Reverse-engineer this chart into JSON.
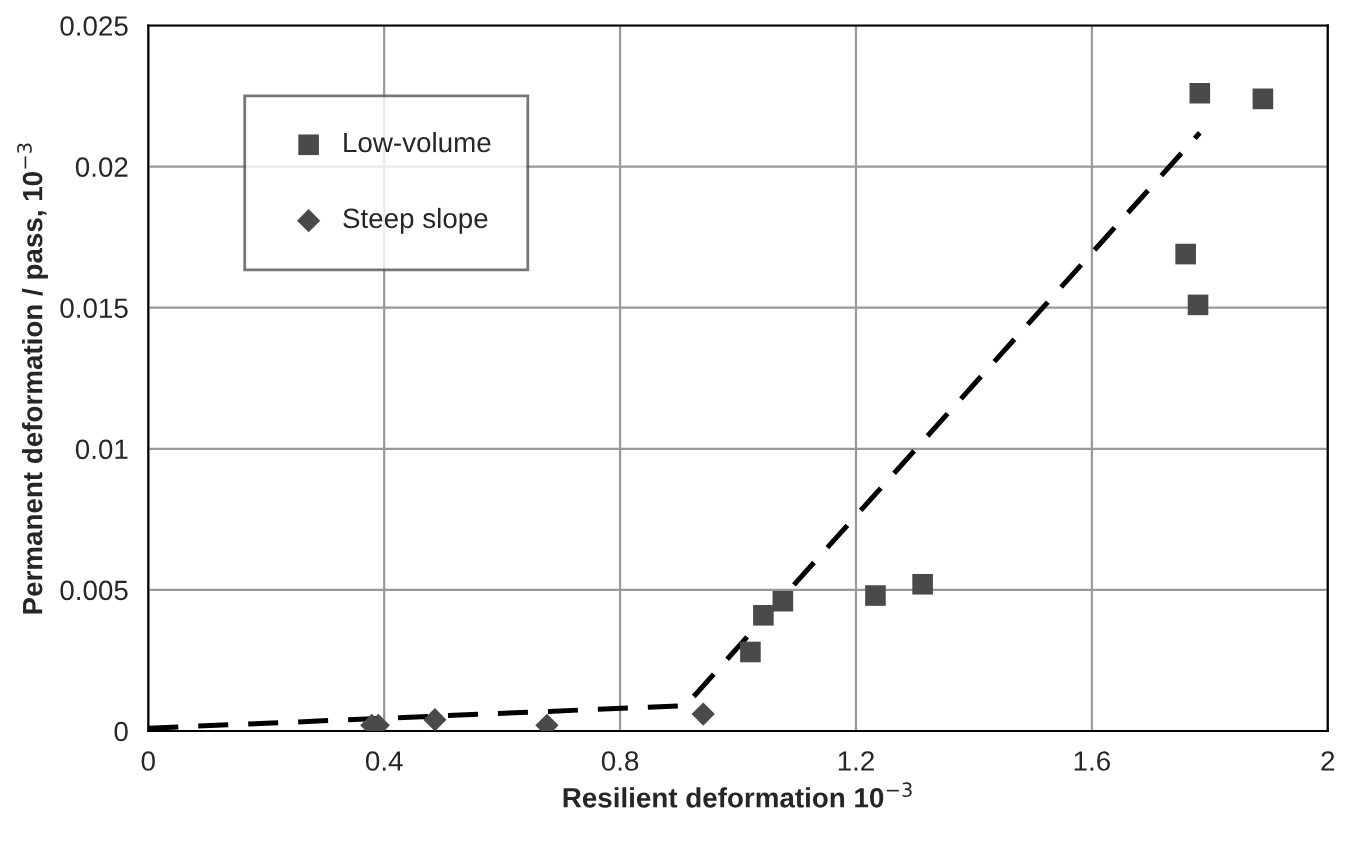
{
  "chart_data": {
    "type": "scatter",
    "xlabel": "Resilient deformation 10$^{−3}$",
    "ylabel": "Permanent deformation / pass, 10$^{−3}$",
    "xlim": [
      0,
      2
    ],
    "xticks": [
      0,
      0.4,
      0.8,
      1.2,
      1.6,
      2
    ],
    "ylim": [
      0,
      0.025
    ],
    "yticks": [
      0,
      0.005,
      0.01,
      0.015,
      0.02,
      0.025
    ],
    "grid": true,
    "legend": "top left",
    "series": [
      {
        "name": "Low-volume",
        "marker": "square",
        "color": "#4a4a4a",
        "x": [
          1.783,
          1.89,
          1.759,
          1.78,
          1.233,
          1.313,
          1.043,
          1.076,
          1.021
        ],
        "values": [
          0.0226,
          0.0224,
          0.0169,
          0.0151,
          0.0048,
          0.0052,
          0.0041,
          0.0046,
          0.0028
        ]
      },
      {
        "name": "Steep slope",
        "marker": "diamond",
        "color": "#4a4a4a",
        "x": [
          0.379,
          0.39,
          0.486,
          0.676,
          0.941
        ],
        "values": [
          0.0002,
          0.0002,
          0.0004,
          0.0002,
          0.0006
        ]
      },
      {
        "type": "line",
        "marker": "none",
        "line_style": "dashed",
        "color": "#000000",
        "x": [
          0,
          0.911,
          1.783
        ],
        "values": [
          0.0001,
          0.0009,
          0.0212
        ]
      }
    ]
  }
}
